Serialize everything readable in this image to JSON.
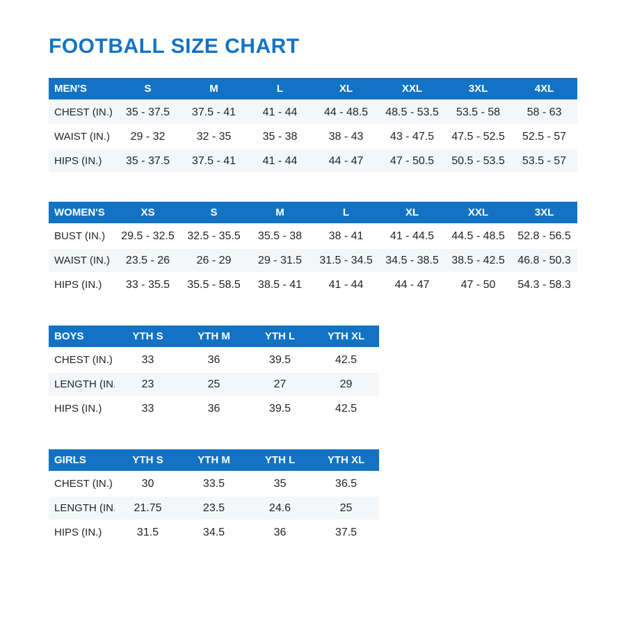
{
  "page": {
    "title": "FOOTBALL SIZE CHART"
  },
  "colors": {
    "accent_blue": "#1273c4",
    "shaded_row": "#f5f6f7",
    "body_text": "#212429",
    "header_text": "#ffffff"
  },
  "tables": [
    {
      "id": "mens",
      "category": "MEN'S",
      "header": [
        "MEN'S",
        "S",
        "M",
        "L",
        "XL",
        "XXL",
        "3XL",
        "4XL"
      ],
      "rows": [
        {
          "label": "CHEST (IN.)",
          "shaded": true,
          "values": [
            "35 - 37.5",
            "37.5 - 41",
            "41 - 44",
            "44 - 48.5",
            "48.5 - 53.5",
            "53.5 - 58",
            "58 - 63"
          ]
        },
        {
          "label": "WAIST (IN.)",
          "shaded": false,
          "values": [
            "29 - 32",
            "32 - 35",
            "35 - 38",
            "38 - 43",
            "43 - 47.5",
            "47.5 - 52.5",
            "52.5 - 57"
          ]
        },
        {
          "label": "HIPS (IN.)",
          "shaded": true,
          "values": [
            "35 - 37.5",
            "37.5 - 41",
            "41 - 44",
            "44 - 47",
            "47 - 50.5",
            "50.5 - 53.5",
            "53.5 - 57"
          ]
        }
      ]
    },
    {
      "id": "womens",
      "category": "WOMEN'S",
      "header": [
        "WOMEN'S",
        "XS",
        "S",
        "M",
        "L",
        "XL",
        "XXL",
        "3XL"
      ],
      "rows": [
        {
          "label": "BUST (IN.)",
          "shaded": false,
          "values": [
            "29.5 - 32.5",
            "32.5 - 35.5",
            "35.5 - 38",
            "38 - 41",
            "41 - 44.5",
            "44.5 - 48.5",
            "52.8 - 56.5"
          ]
        },
        {
          "label": "WAIST (IN.)",
          "shaded": true,
          "values": [
            "23.5 - 26",
            "26 - 29",
            "29 - 31.5",
            "31.5 - 34.5",
            "34.5 - 38.5",
            "38.5 - 42.5",
            "46.8 - 50.3"
          ]
        },
        {
          "label": "HIPS (IN.)",
          "shaded": false,
          "values": [
            "33 - 35.5",
            "35.5 - 58.5",
            "38.5 - 41",
            "41 - 44",
            "44 - 47",
            "47 - 50",
            "54.3 - 58.3"
          ]
        }
      ]
    },
    {
      "id": "boys",
      "category": "BOYS",
      "header": [
        "BOYS",
        "YTH S",
        "YTH M",
        "YTH L",
        "YTH XL"
      ],
      "rows": [
        {
          "label": "CHEST (IN.)",
          "shaded": false,
          "values": [
            "33",
            "36",
            "39.5",
            "42.5"
          ]
        },
        {
          "label": "LENGTH (IN.)",
          "shaded": true,
          "values": [
            "23",
            "25",
            "27",
            "29"
          ]
        },
        {
          "label": "HIPS (IN.)",
          "shaded": false,
          "values": [
            "33",
            "36",
            "39.5",
            "42.5"
          ]
        }
      ]
    },
    {
      "id": "girls",
      "category": "GIRLS",
      "header": [
        "GIRLS",
        "YTH S",
        "YTH M",
        "YTH L",
        "YTH XL"
      ],
      "rows": [
        {
          "label": "CHEST (IN.)",
          "shaded": false,
          "values": [
            "30",
            "33.5",
            "35",
            "36.5"
          ]
        },
        {
          "label": "LENGTH (IN.)",
          "shaded": true,
          "values": [
            "21.75",
            "23.5",
            "24.6",
            "25"
          ]
        },
        {
          "label": "HIPS (IN.)",
          "shaded": false,
          "values": [
            "31.5",
            "34.5",
            "36",
            "37.5"
          ]
        }
      ]
    }
  ]
}
